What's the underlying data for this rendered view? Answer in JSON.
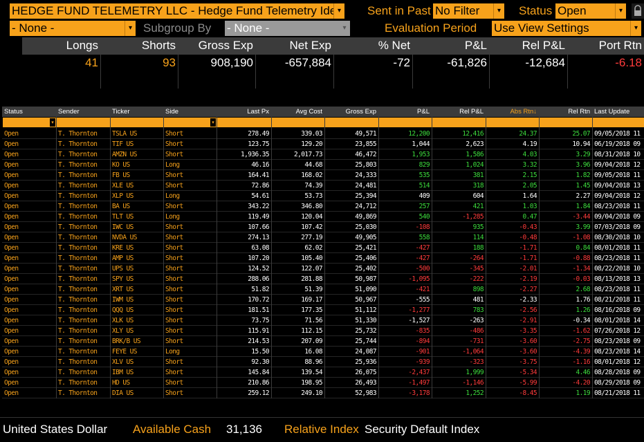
{
  "filters": {
    "fund_select": "HEDGE FUND TELEMETRY LLC - Hedge Fund Telemetry Ideas",
    "sent_in_past_label": "Sent in Past",
    "sent_in_past_value": "No Filter",
    "status_label": "Status",
    "status_value": "Open",
    "group_value": "- None -",
    "subgroup_label": "Subgroup By",
    "subgroup_value": "- None -",
    "evaluation_label": "Evaluation Period",
    "evaluation_value": "Use View Settings"
  },
  "summary": {
    "headers": [
      "Longs",
      "Shorts",
      "Gross Exp",
      "Net Exp",
      "% Net",
      "P&L",
      "Rel P&L",
      "Port Rtn"
    ],
    "values": [
      "41",
      "93",
      "908,190",
      "-657,884",
      "-72",
      "-61,826",
      "-12,684",
      "-6.18"
    ]
  },
  "table": {
    "headers": [
      "Status",
      "Sender",
      "Ticker",
      "Side",
      "Last Px",
      "Avg Cost",
      "Gross Exp",
      "P&L",
      "Rel P&L",
      "Abs Rtn↓",
      "Rel Rtn",
      "Last Update"
    ],
    "rows": [
      [
        "Open",
        "T. Thornton",
        "TSLA US",
        "Short",
        "278.49",
        "339.03",
        "49,571",
        "12,200",
        "12,416",
        "24.37",
        "25.07",
        "09/05/2018 11"
      ],
      [
        "Open",
        "T. Thornton",
        "TIF US",
        "Short",
        "123.75",
        "129.20",
        "23,855",
        "1,044",
        "2,623",
        "4.19",
        "10.94",
        "06/19/2018 09"
      ],
      [
        "Open",
        "T. Thornton",
        "AMZN US",
        "Short",
        "1,936.35",
        "2,017.73",
        "46,472",
        "1,953",
        "1,586",
        "4.03",
        "3.29",
        "08/31/2018 10"
      ],
      [
        "Open",
        "T. Thornton",
        "KO US",
        "Long",
        "46.16",
        "44.68",
        "25,803",
        "829",
        "1,024",
        "3.32",
        "3.96",
        "09/04/2018 12"
      ],
      [
        "Open",
        "T. Thornton",
        "FB US",
        "Short",
        "164.41",
        "168.02",
        "24,333",
        "535",
        "381",
        "2.15",
        "1.82",
        "09/05/2018 11"
      ],
      [
        "Open",
        "T. Thornton",
        "XLE US",
        "Short",
        "72.86",
        "74.39",
        "24,481",
        "514",
        "318",
        "2.05",
        "1.45",
        "09/04/2018 13"
      ],
      [
        "Open",
        "T. Thornton",
        "XLP US",
        "Long",
        "54.61",
        "53.73",
        "25,394",
        "409",
        "604",
        "1.64",
        "2.27",
        "09/04/2018 12"
      ],
      [
        "Open",
        "T. Thornton",
        "BA US",
        "Short",
        "343.22",
        "346.80",
        "24,712",
        "257",
        "421",
        "1.03",
        "1.84",
        "08/23/2018 11"
      ],
      [
        "Open",
        "T. Thornton",
        "TLT US",
        "Long",
        "119.49",
        "120.04",
        "49,869",
        "540",
        "-1,285",
        "0.47",
        "-3.44",
        "09/04/2018 09"
      ],
      [
        "Open",
        "T. Thornton",
        "IWC US",
        "Short",
        "107.66",
        "107.42",
        "25,030",
        "-108",
        "935",
        "-0.43",
        "3.99",
        "07/03/2018 09"
      ],
      [
        "Open",
        "T. Thornton",
        "NVDA US",
        "Short",
        "274.13",
        "277.19",
        "49,905",
        "558",
        "114",
        "-0.48",
        "-1.08",
        "08/30/2018 10"
      ],
      [
        "Open",
        "T. Thornton",
        "KRE US",
        "Short",
        "63.08",
        "62.02",
        "25,421",
        "-427",
        "188",
        "-1.71",
        "0.84",
        "08/01/2018 11"
      ],
      [
        "Open",
        "T. Thornton",
        "AMP US",
        "Short",
        "107.20",
        "105.40",
        "25,406",
        "-427",
        "-264",
        "-1.71",
        "-0.88",
        "08/23/2018 11"
      ],
      [
        "Open",
        "T. Thornton",
        "UPS US",
        "Short",
        "124.52",
        "122.07",
        "25,402",
        "-500",
        "-345",
        "-2.01",
        "-1.34",
        "08/22/2018 10"
      ],
      [
        "Open",
        "T. Thornton",
        "SPY US",
        "Short",
        "288.06",
        "281.88",
        "50,987",
        "-1,095",
        "-222",
        "-2.19",
        "-0.03",
        "08/13/2018 13"
      ],
      [
        "Open",
        "T. Thornton",
        "XRT US",
        "Short",
        "51.82",
        "51.39",
        "51,090",
        "-421",
        "898",
        "-2.27",
        "2.68",
        "08/23/2018 11"
      ],
      [
        "Open",
        "T. Thornton",
        "IWM US",
        "Short",
        "170.72",
        "169.17",
        "50,967",
        "-555",
        "481",
        "-2.33",
        "1.76",
        "08/21/2018 11"
      ],
      [
        "Open",
        "T. Thornton",
        "QQQ US",
        "Short",
        "181.51",
        "177.35",
        "51,112",
        "-1,277",
        "783",
        "-2.56",
        "1.26",
        "08/16/2018 09"
      ],
      [
        "Open",
        "T. Thornton",
        "XLK US",
        "Short",
        "73.75",
        "71.56",
        "51,330",
        "-1,527",
        "-263",
        "-2.91",
        "-0.34",
        "08/01/2018 14"
      ],
      [
        "Open",
        "T. Thornton",
        "XLY US",
        "Short",
        "115.91",
        "112.15",
        "25,732",
        "-835",
        "-486",
        "-3.35",
        "-1.62",
        "07/26/2018 12"
      ],
      [
        "Open",
        "T. Thornton",
        "BRK/B US",
        "Short",
        "214.53",
        "207.09",
        "25,744",
        "-894",
        "-731",
        "-3.60",
        "-2.75",
        "08/23/2018 09"
      ],
      [
        "Open",
        "T. Thornton",
        "FEYE US",
        "Long",
        "15.50",
        "16.08",
        "24,087",
        "-901",
        "-1,064",
        "-3.60",
        "-4.39",
        "08/23/2018 14"
      ],
      [
        "Open",
        "T. Thornton",
        "XLV US",
        "Short",
        "92.30",
        "88.96",
        "25,936",
        "-939",
        "-323",
        "-3.75",
        "-1.16",
        "08/01/2018 12"
      ],
      [
        "Open",
        "T. Thornton",
        "IBM US",
        "Short",
        "145.84",
        "139.54",
        "26,075",
        "-2,437",
        "1,999",
        "-5.34",
        "4.46",
        "08/28/2018 09"
      ],
      [
        "Open",
        "T. Thornton",
        "HD US",
        "Short",
        "210.86",
        "198.95",
        "26,493",
        "-1,497",
        "-1,146",
        "-5.99",
        "-4.20",
        "08/29/2018 09"
      ],
      [
        "Open",
        "T. Thornton",
        "DIA US",
        "Short",
        "259.12",
        "249.10",
        "52,983",
        "-3,178",
        "1,252",
        "-8.45",
        "1.19",
        "08/21/2018 11"
      ]
    ]
  },
  "footer": {
    "currency": "United States Dollar",
    "cash_label": "Available Cash",
    "cash_value": "31,136",
    "index_label": "Relative Index",
    "index_value": "Security Default Index"
  },
  "colors": {
    "accent": "#f7a21b",
    "positive": "#3ddc3d",
    "negative": "#ff3b3b",
    "header_bg": "#3b3b3b"
  }
}
